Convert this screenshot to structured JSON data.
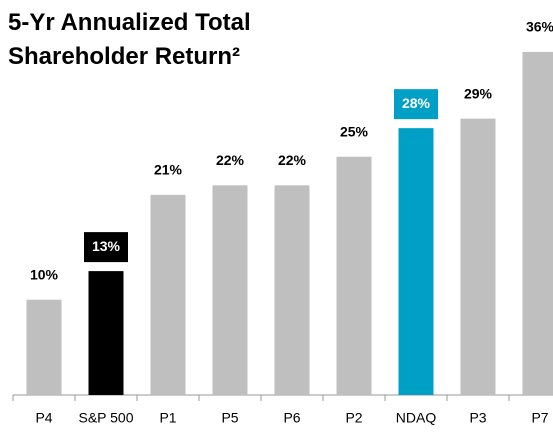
{
  "chart_data": {
    "type": "bar",
    "title": "5-Yr Annualized Total Shareholder Return²",
    "categories": [
      "P4",
      "S&P 500",
      "P1",
      "P5",
      "P6",
      "P2",
      "NDAQ",
      "P3",
      "P7"
    ],
    "values": [
      10,
      13,
      21,
      22,
      22,
      25,
      28,
      29,
      36
    ],
    "value_labels": [
      "10%",
      "13%",
      "21%",
      "22%",
      "22%",
      "25%",
      "28%",
      "29%",
      "36%"
    ],
    "colors": [
      "#bfbfbf",
      "#000000",
      "#bfbfbf",
      "#bfbfbf",
      "#bfbfbf",
      "#bfbfbf",
      "#00a0c6",
      "#bfbfbf",
      "#bfbfbf"
    ]
  }
}
